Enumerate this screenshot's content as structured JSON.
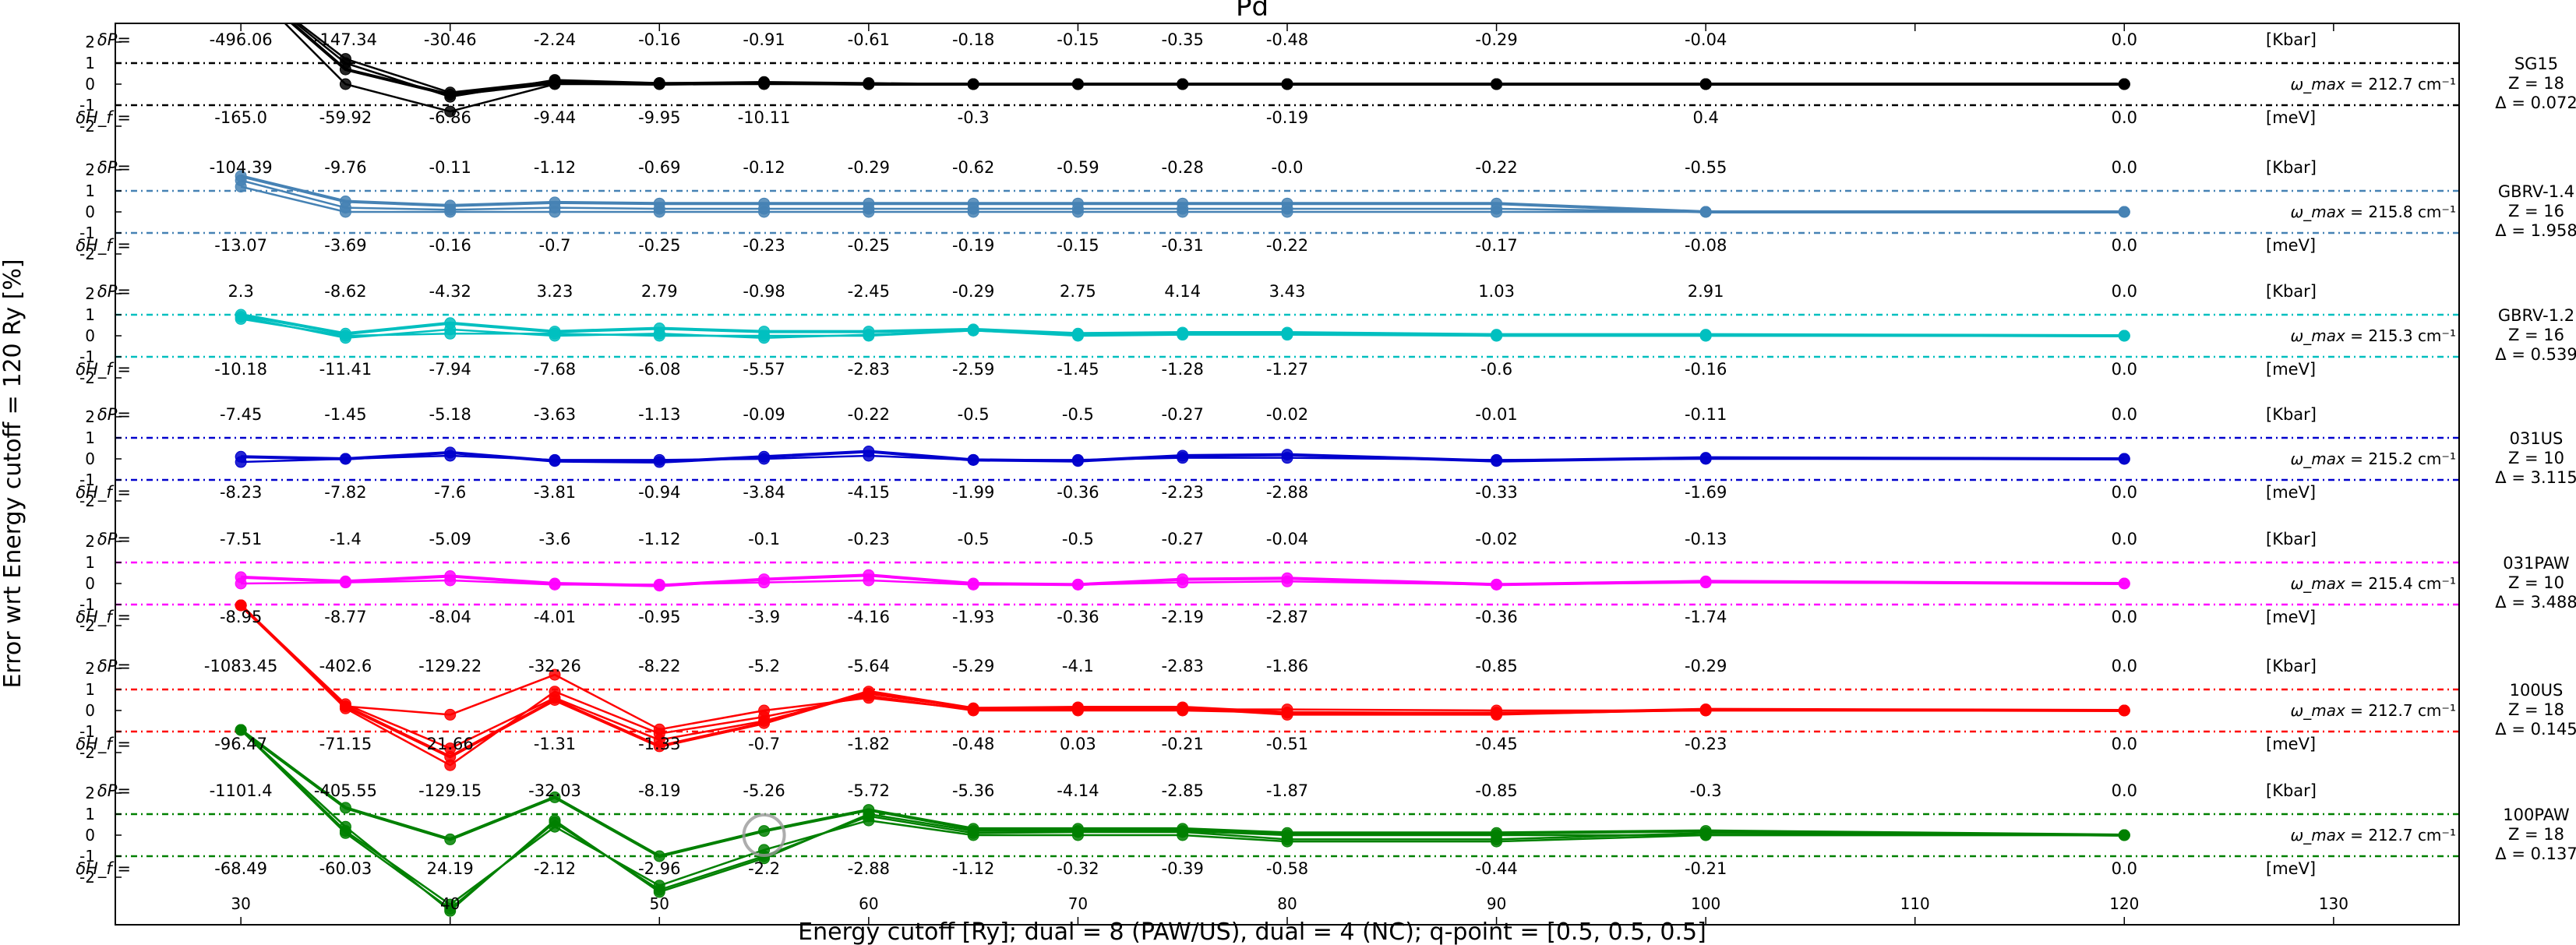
{
  "chart_data": {
    "type": "line",
    "title": "Pd",
    "xlabel": "Energy cutoff [Ry]; dual = 8 (PAW/US), dual = 4 (NC); q-point = [0.5, 0.5, 0.5]",
    "ylabel": "Error wrt Energy cutoff = 120 Ry [%]",
    "xlim": [
      24,
      136
    ],
    "x_ticks": [
      30,
      40,
      50,
      60,
      70,
      80,
      90,
      100,
      110,
      120,
      130
    ],
    "y_ticks_per_panel": [
      "2",
      "1",
      "0",
      "-1",
      "-2"
    ],
    "panel_ylim": [
      -2.7,
      2.7
    ],
    "band_levels": [
      1,
      -1
    ],
    "dP_label": "δP=",
    "dH_label": "δH_f =",
    "dP_unit": "[Kbar]",
    "dH_unit": "[meV]",
    "omega_label": "ω_max",
    "omega_unit": "cm⁻¹",
    "panels": [
      {
        "name": "SG15",
        "color": "#000000",
        "omega": "212.7",
        "Z": "Z = 18",
        "delta": "Δ = 0.072",
        "x": [
          30,
          35,
          40,
          45,
          50,
          55,
          60,
          65,
          70,
          75,
          80,
          90,
          100,
          120
        ],
        "dP": [
          "-496.06",
          "-147.34",
          "-30.46",
          "-2.24",
          "-0.16",
          "-0.91",
          "-0.61",
          "-0.18",
          "-0.15",
          "-0.35",
          "-0.48",
          "-0.29",
          "-0.04",
          "0.0"
        ],
        "dH": [
          "-165.0",
          "-59.92",
          "-6.86",
          "-9.44",
          "-9.95",
          "-10.11",
          "",
          "-0.3",
          "",
          "",
          "-0.19",
          "",
          "0.4",
          "0.0"
        ],
        "series": [
          [
            5.0,
            0.7,
            -0.5,
            0.05,
            0.0,
            0.05,
            0.0,
            0.0,
            0.0,
            0.0,
            0.0,
            0.0,
            0.0,
            0.0
          ],
          [
            5.0,
            1.2,
            -0.4,
            0.15,
            0.05,
            0.05,
            0.0,
            0.0,
            0.0,
            0.0,
            0.0,
            0.0,
            0.0,
            0.0
          ],
          [
            5.0,
            1.0,
            -0.6,
            0.2,
            0.05,
            0.1,
            0.05,
            0.0,
            0.0,
            0.0,
            0.0,
            0.0,
            0.0,
            0.0
          ],
          [
            5.0,
            0.0,
            -1.3,
            0.0,
            0.0,
            0.0,
            0.0,
            0.0,
            0.0,
            0.0,
            0.0,
            0.0,
            0.0,
            0.0
          ]
        ]
      },
      {
        "name": "GBRV-1.4",
        "color": "#4682b4",
        "omega": "215.8",
        "Z": "Z = 16",
        "delta": "Δ = 1.958",
        "x": [
          30,
          35,
          40,
          45,
          50,
          55,
          60,
          65,
          70,
          75,
          80,
          90,
          100,
          120
        ],
        "dP": [
          "-104.39",
          "-9.76",
          "-0.11",
          "-1.12",
          "-0.69",
          "-0.12",
          "-0.29",
          "-0.62",
          "-0.59",
          "-0.28",
          "-0.0",
          "-0.22",
          "-0.55",
          "0.0"
        ],
        "dH": [
          "-13.07",
          "-3.69",
          "-0.16",
          "-0.7",
          "-0.25",
          "-0.23",
          "-0.25",
          "-0.19",
          "-0.15",
          "-0.31",
          "-0.22",
          "-0.17",
          "-0.08",
          "0.0"
        ],
        "series": [
          [
            1.7,
            0.5,
            0.3,
            0.45,
            0.4,
            0.4,
            0.4,
            0.4,
            0.4,
            0.4,
            0.4,
            0.4,
            0.0,
            0.0
          ],
          [
            1.2,
            0.0,
            0.0,
            0.0,
            0.0,
            0.0,
            0.0,
            0.0,
            0.0,
            0.0,
            0.0,
            0.0,
            0.0,
            0.0
          ],
          [
            1.5,
            0.2,
            0.1,
            0.2,
            0.15,
            0.15,
            0.15,
            0.15,
            0.15,
            0.15,
            0.15,
            0.15,
            0.0,
            0.0
          ]
        ]
      },
      {
        "name": "GBRV-1.2",
        "color": "#00bfbf",
        "omega": "215.3",
        "Z": "Z = 16",
        "delta": "Δ = 0.539",
        "x": [
          30,
          35,
          40,
          45,
          50,
          55,
          60,
          65,
          70,
          75,
          80,
          90,
          100,
          120
        ],
        "dP": [
          "2.3",
          "-8.62",
          "-4.32",
          "3.23",
          "2.79",
          "-0.98",
          "-2.45",
          "-0.29",
          "2.75",
          "4.14",
          "3.43",
          "1.03",
          "2.91",
          "0.0"
        ],
        "dH": [
          "-10.18",
          "-11.41",
          "-7.94",
          "-7.68",
          "-6.08",
          "-5.57",
          "-2.83",
          "-2.59",
          "-1.45",
          "-1.28",
          "-1.27",
          "-0.6",
          "-0.16",
          "0.0"
        ],
        "series": [
          [
            1.0,
            0.1,
            0.6,
            0.2,
            0.35,
            0.2,
            0.2,
            0.3,
            0.1,
            0.15,
            0.15,
            0.05,
            0.05,
            0.0
          ],
          [
            0.9,
            -0.1,
            0.3,
            0.0,
            0.1,
            -0.1,
            0.05,
            0.25,
            0.05,
            0.1,
            0.1,
            0.0,
            0.0,
            0.0
          ],
          [
            0.8,
            0.0,
            0.1,
            0.1,
            0.0,
            0.0,
            0.0,
            0.25,
            0.0,
            0.05,
            0.05,
            0.0,
            0.0,
            0.0
          ]
        ]
      },
      {
        "name": "031US",
        "color": "#0000cd",
        "omega": "215.2",
        "Z": "Z = 10",
        "delta": "Δ = 3.115",
        "x": [
          30,
          35,
          40,
          45,
          50,
          55,
          60,
          65,
          70,
          75,
          80,
          90,
          100,
          120
        ],
        "dP": [
          "-7.45",
          "-1.45",
          "-5.18",
          "-3.63",
          "-1.13",
          "-0.09",
          "-0.22",
          "-0.5",
          "-0.5",
          "-0.27",
          "-0.02",
          "-0.01",
          "-0.11",
          "0.0"
        ],
        "dH": [
          "-8.23",
          "-7.82",
          "-7.6",
          "-3.81",
          "-0.94",
          "-3.84",
          "-4.15",
          "-1.99",
          "-0.36",
          "-2.23",
          "-2.88",
          "-0.33",
          "-1.69",
          "0.0"
        ],
        "series": [
          [
            0.1,
            0.0,
            0.3,
            -0.1,
            -0.15,
            0.1,
            0.35,
            -0.05,
            -0.1,
            0.15,
            0.2,
            -0.1,
            0.05,
            0.0
          ],
          [
            -0.15,
            0.0,
            0.15,
            -0.05,
            -0.05,
            0.0,
            0.15,
            -0.05,
            -0.05,
            0.05,
            0.05,
            -0.05,
            0.0,
            0.0
          ]
        ]
      },
      {
        "name": "031PAW",
        "color": "#ff00ff",
        "omega": "215.4",
        "Z": "Z = 10",
        "delta": "Δ = 3.488",
        "x": [
          30,
          35,
          40,
          45,
          50,
          55,
          60,
          65,
          70,
          75,
          80,
          90,
          100,
          120
        ],
        "dP": [
          "-7.51",
          "-1.4",
          "-5.09",
          "-3.6",
          "-1.12",
          "-0.1",
          "-0.23",
          "-0.5",
          "-0.5",
          "-0.27",
          "-0.04",
          "-0.02",
          "-0.13",
          "0.0"
        ],
        "dH": [
          "-8.95",
          "-8.77",
          "-8.04",
          "-4.01",
          "-0.95",
          "-3.9",
          "-4.16",
          "-1.93",
          "-0.36",
          "-2.19",
          "-2.87",
          "-0.36",
          "-1.74",
          "0.0"
        ],
        "series": [
          [
            0.3,
            0.1,
            0.35,
            0.0,
            -0.1,
            0.2,
            0.4,
            0.0,
            -0.05,
            0.2,
            0.25,
            -0.05,
            0.1,
            0.0
          ],
          [
            0.0,
            0.05,
            0.15,
            -0.05,
            -0.05,
            0.05,
            0.15,
            -0.05,
            -0.05,
            0.05,
            0.1,
            -0.05,
            0.05,
            0.0
          ]
        ]
      },
      {
        "name": "100US",
        "color": "#ff0000",
        "omega": "212.7",
        "Z": "Z = 18",
        "delta": "Δ = 0.145",
        "x": [
          30,
          35,
          40,
          45,
          50,
          55,
          60,
          65,
          70,
          75,
          80,
          90,
          100,
          120
        ],
        "dP": [
          "-1083.45",
          "-402.6",
          "-129.22",
          "-32.26",
          "-8.22",
          "-5.2",
          "-5.64",
          "-5.29",
          "-4.1",
          "-2.83",
          "-1.86",
          "-0.85",
          "-0.29",
          "0.0"
        ],
        "dH": [
          "-96.47",
          "-71.15",
          "21.66",
          "-1.31",
          "-1.33",
          "-0.7",
          "-1.82",
          "-0.48",
          "0.03",
          "-0.21",
          "-0.51",
          "-0.45",
          "-0.23",
          "0.0"
        ],
        "series": [
          [
            5.0,
            0.2,
            -2.2,
            0.5,
            -1.7,
            -0.6,
            0.9,
            0.1,
            0.15,
            0.15,
            -0.1,
            -0.15,
            0.05,
            0.0
          ],
          [
            5.0,
            0.3,
            -1.8,
            0.6,
            -1.4,
            -0.5,
            0.8,
            0.1,
            0.1,
            0.1,
            -0.2,
            -0.2,
            0.05,
            0.0
          ],
          [
            5.0,
            0.2,
            -0.2,
            1.7,
            -0.9,
            0.0,
            0.6,
            0.05,
            0.05,
            0.05,
            0.05,
            0.0,
            0.0,
            0.0
          ],
          [
            5.0,
            0.1,
            -2.6,
            0.9,
            -1.1,
            -0.3,
            0.7,
            0.0,
            0.0,
            0.0,
            -0.1,
            -0.1,
            0.0,
            0.0
          ]
        ]
      },
      {
        "name": "100PAW",
        "color": "#008000",
        "omega": "212.7",
        "Z": "Z = 18",
        "delta": "Δ = 0.137",
        "x": [
          30,
          35,
          40,
          45,
          50,
          55,
          60,
          65,
          70,
          75,
          80,
          90,
          100,
          120
        ],
        "dP": [
          "-1101.4",
          "-405.55",
          "-129.15",
          "-32.03",
          "-8.19",
          "-5.26",
          "-5.72",
          "-5.36",
          "-4.14",
          "-2.85",
          "-1.87",
          "-0.85",
          "-0.3",
          "0.0"
        ],
        "dH": [
          "-68.49",
          "-60.03",
          "24.19",
          "-2.12",
          "-2.96",
          "-2.2",
          "-2.88",
          "-1.12",
          "-0.32",
          "-0.39",
          "-0.58",
          "-0.44",
          "-0.21",
          "0.0"
        ],
        "series": [
          [
            5.0,
            1.3,
            -0.2,
            1.8,
            -1.0,
            0.2,
            1.2,
            0.3,
            0.3,
            0.3,
            0.1,
            0.1,
            0.2,
            0.0
          ],
          [
            5.0,
            0.1,
            -3.5,
            0.6,
            -2.6,
            -1.0,
            0.9,
            0.1,
            0.15,
            0.15,
            -0.2,
            -0.2,
            0.1,
            0.0
          ],
          [
            5.0,
            0.2,
            -3.3,
            0.4,
            -2.4,
            -0.7,
            0.7,
            0.0,
            0.0,
            0.0,
            -0.3,
            -0.3,
            0.0,
            0.0
          ],
          [
            5.0,
            0.4,
            -3.6,
            0.7,
            -2.7,
            -1.1,
            1.0,
            0.2,
            0.2,
            0.2,
            0.0,
            0.0,
            0.0,
            0.0
          ]
        ]
      }
    ]
  }
}
